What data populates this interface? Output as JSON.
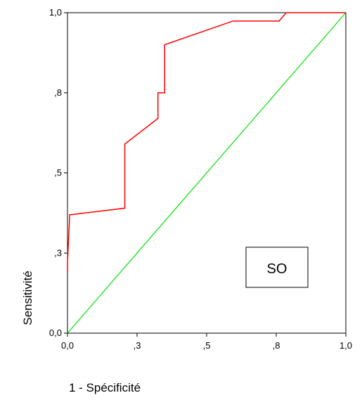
{
  "chart_data": {
    "type": "line",
    "title": "",
    "xlabel": "1 - Spécificité",
    "ylabel": "Sensitivité",
    "xlim": [
      0,
      1
    ],
    "ylim": [
      0,
      1
    ],
    "x_ticks": [
      {
        "value": 0.0,
        "label": "0,0"
      },
      {
        "value": 0.25,
        "label": ",3"
      },
      {
        "value": 0.5,
        "label": ",5"
      },
      {
        "value": 0.75,
        "label": ",8"
      },
      {
        "value": 1.0,
        "label": "1,0"
      }
    ],
    "y_ticks": [
      {
        "value": 0.0,
        "label": "0,0"
      },
      {
        "value": 0.25,
        "label": ",3"
      },
      {
        "value": 0.5,
        "label": ",5"
      },
      {
        "value": 0.75,
        "label": ",8"
      },
      {
        "value": 1.0,
        "label": "1,0"
      }
    ],
    "grid": false,
    "legend": {
      "label": "SO",
      "position": "bottom-right"
    },
    "series": [
      {
        "name": "SO",
        "color": "#ff0000",
        "points": [
          [
            0.0,
            0.19
          ],
          [
            0.0,
            0.22
          ],
          [
            0.008,
            0.37
          ],
          [
            0.016,
            0.37
          ],
          [
            0.206,
            0.39
          ],
          [
            0.206,
            0.59
          ],
          [
            0.325,
            0.67
          ],
          [
            0.325,
            0.75
          ],
          [
            0.349,
            0.75
          ],
          [
            0.349,
            0.9
          ],
          [
            0.595,
            0.974
          ],
          [
            0.76,
            0.974
          ],
          [
            0.786,
            1.0
          ],
          [
            1.0,
            1.0
          ]
        ]
      },
      {
        "color": "#00e000",
        "points": [
          [
            0.0,
            0.0
          ],
          [
            1.0,
            1.0
          ]
        ]
      }
    ]
  }
}
